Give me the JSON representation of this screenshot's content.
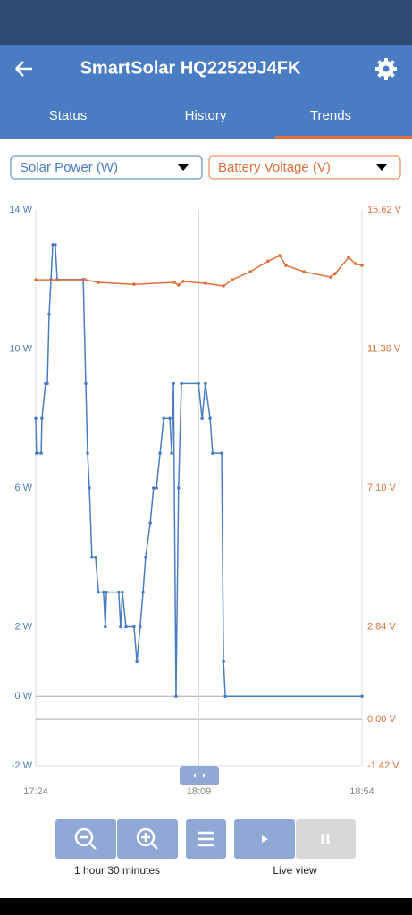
{
  "app_bar": {
    "title": "SmartSolar HQ22529J4FK"
  },
  "tabs": [
    "Status",
    "History",
    "Trends"
  ],
  "controls": {
    "zoom_label": "1 hour 30 minutes",
    "live_label": "Live view"
  },
  "chart_data": {
    "type": "line",
    "xlim": [
      1044,
      1134
    ],
    "xticks": [
      {
        "value": 1044,
        "label": "17:24"
      },
      {
        "value": 1089,
        "label": "18:09"
      },
      {
        "value": 1134,
        "label": "18:54"
      }
    ],
    "ylim": [
      -2,
      14
    ],
    "yticks": [
      {
        "value": 14,
        "label": "14 W"
      },
      {
        "value": 10,
        "label": "10 W"
      },
      {
        "value": 6,
        "label": "6 W"
      },
      {
        "value": 2,
        "label": "2 W"
      },
      {
        "value": 0,
        "label": "0 W"
      },
      {
        "value": -2,
        "label": "-2 W"
      }
    ],
    "y2lim": [
      -1.42,
      15.62
    ],
    "y2ticks": [
      {
        "value": 15.62,
        "label": "15.62 V"
      },
      {
        "value": 11.36,
        "label": "11.36 V"
      },
      {
        "value": 7.1,
        "label": "7.10 V"
      },
      {
        "value": 2.84,
        "label": "2.84 V"
      },
      {
        "value": 0,
        "label": "0.00 V"
      },
      {
        "value": -1.42,
        "label": "-1.42 V"
      }
    ],
    "series": [
      {
        "name": "Solar Power (W)",
        "color": "#4a7cc4",
        "x": [
          1044,
          1044.2,
          1045.5,
          1045.7,
          1046.7,
          1047.2,
          1047.7,
          1048.2,
          1048.7,
          1049.4,
          1049.9,
          1057.1,
          1057.8,
          1058.3,
          1058.8,
          1059.5,
          1060.5,
          1061.3,
          1062.7,
          1063.2,
          1063.5,
          1066.9,
          1067.4,
          1067.9,
          1068.9,
          1071.1,
          1071.9,
          1072.8,
          1073.6,
          1074.3,
          1075.6,
          1076.5,
          1077.3,
          1078.3,
          1079.3,
          1081.0,
          1081.5,
          1082.0,
          1082.7,
          1083.4,
          1084.2,
          1088.9,
          1089.9,
          1090.8,
          1092.1,
          1092.8,
          1095.3,
          1095.8,
          1096.3,
          1134
        ],
        "values": [
          8,
          7,
          7,
          8,
          9,
          9,
          11,
          12,
          13,
          13,
          12,
          12,
          9,
          7,
          6,
          4,
          4,
          3,
          3,
          2,
          3,
          3,
          2,
          3,
          2,
          2,
          1,
          2,
          3,
          4,
          5,
          6,
          6,
          7,
          8,
          8,
          7,
          9,
          0,
          6,
          9,
          9,
          8,
          9,
          8,
          7,
          7,
          1,
          0,
          0
        ]
      },
      {
        "name": "Battery Voltage (V)",
        "color": "#e0703a",
        "axis": "y2",
        "x": [
          1044,
          1057.6,
          1061.3,
          1071.1,
          1082.2,
          1083.4,
          1084.7,
          1090.8,
          1095.8,
          1098.2,
          1103.2,
          1108.1,
          1111.3,
          1113.0,
          1118.0,
          1125.4,
          1126.6,
          1130.3,
          1132.3,
          1134
        ],
        "values": [
          13.48,
          13.48,
          13.4,
          13.34,
          13.4,
          13.32,
          13.43,
          13.37,
          13.29,
          13.48,
          13.73,
          14.05,
          14.22,
          13.92,
          13.73,
          13.56,
          13.67,
          14.16,
          13.97,
          13.92
        ]
      }
    ]
  }
}
